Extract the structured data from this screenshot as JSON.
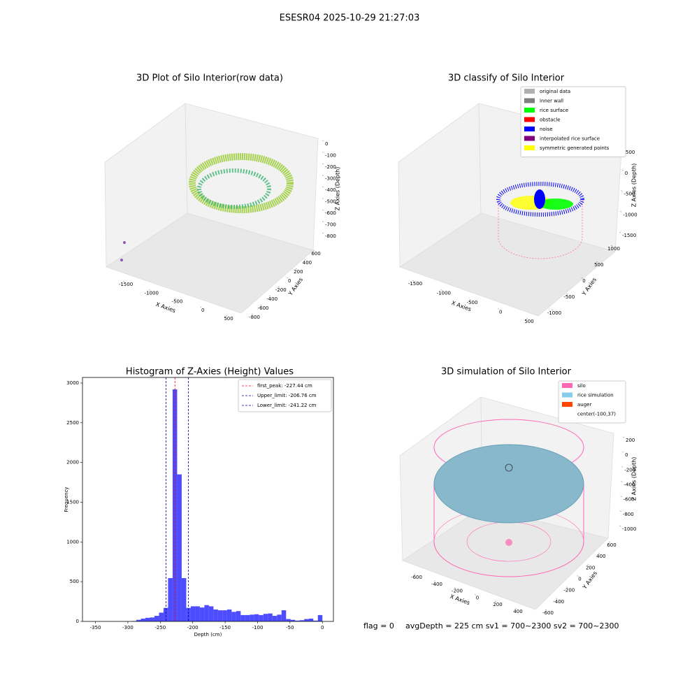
{
  "title": "ESESR04 2025-10-29 21:27:03",
  "footer": {
    "flag": "flag = 0",
    "stats": "avgDepth = 225 cm  sv1 = 700~2300  sv2 = 700~2300"
  },
  "chart_data": [
    {
      "type": "scatter3d",
      "title": "3D Plot of Silo Interior(row data)",
      "x_label": "X Axies",
      "y_label": "Y Axies",
      "z_label": "Z Axies (Depth)",
      "xticks": [
        -1500,
        -1000,
        -500,
        0,
        500
      ],
      "yticks": [
        600,
        400,
        200,
        0,
        -200,
        -400,
        -600,
        -800
      ],
      "zticks": [
        0,
        -100,
        -200,
        -300,
        -400,
        -500,
        -600,
        -700,
        -800
      ]
    },
    {
      "type": "scatter3d",
      "title": "3D classify of Silo Interior",
      "x_label": "X Axies",
      "y_label": "Y Axies",
      "z_label": "Z Axies (Depth)",
      "xticks": [
        -1500,
        -1000,
        -500,
        0,
        500
      ],
      "yticks": [
        1000,
        500,
        0,
        -500,
        -1000
      ],
      "zticks": [
        500,
        0,
        -500,
        -1000,
        -1500
      ],
      "series": [
        {
          "name": "original data",
          "color": "#b0b0b0"
        },
        {
          "name": "inner wall",
          "color": "#808080"
        },
        {
          "name": "rice surface",
          "color": "#00ff00"
        },
        {
          "name": "obstacle",
          "color": "#ff0000"
        },
        {
          "name": "noise",
          "color": "#0000ff"
        },
        {
          "name": "interpolated rice surface",
          "color": "#800080"
        },
        {
          "name": "symmetric generated points",
          "color": "#ffff00"
        }
      ]
    },
    {
      "type": "histogram",
      "title": "Histogram of Z-Axies (Height) Values",
      "x_label": "Depth (cm)",
      "y_label": "Frequency",
      "color": "#4d4dff",
      "bins": [
        -294,
        -287,
        -280,
        -273,
        -266,
        -259,
        -252,
        -245,
        -238,
        -231,
        -224,
        -217,
        -210,
        -203,
        -196,
        -189,
        -182,
        -175,
        -168,
        -161,
        -154,
        -147,
        -140,
        -133,
        -126,
        -119,
        -112,
        -105,
        -98,
        -91,
        -84,
        -77,
        -70,
        -63,
        -56,
        -49,
        -42,
        -35,
        -28,
        -21,
        -14,
        -7,
        0
      ],
      "values": [
        5,
        20,
        35,
        45,
        50,
        70,
        110,
        170,
        545,
        2920,
        1850,
        545,
        170,
        190,
        190,
        175,
        205,
        190,
        150,
        140,
        140,
        150,
        120,
        130,
        80,
        80,
        85,
        90,
        80,
        95,
        100,
        70,
        85,
        140,
        30,
        20,
        10,
        15,
        30,
        35,
        10,
        80
      ],
      "lines": [
        {
          "label": "first_peak: -227.44 cm",
          "value": -227.44,
          "color": "#ff0000"
        },
        {
          "label": "Upper_limit: -206.76 cm",
          "value": -206.76,
          "color": "#0000aa"
        },
        {
          "label": "Lower_limit: -241.22 cm",
          "value": -241.22,
          "color": "#0000aa"
        }
      ],
      "xlim": [
        -370,
        17
      ],
      "ylim": [
        0,
        3070
      ],
      "xticks": [
        -350,
        -300,
        -250,
        -200,
        -150,
        -100,
        -50,
        0
      ],
      "yticks": [
        0,
        500,
        1000,
        1500,
        2000,
        2500,
        3000
      ]
    },
    {
      "type": "scatter3d",
      "title": "3D simulation of Silo Interior",
      "x_label": "X Axies",
      "y_label": "Y Axies",
      "z_label": "Z Axies (Depth)",
      "xticks": [
        -600,
        -400,
        -200,
        0,
        200,
        400
      ],
      "yticks": [
        600,
        400,
        200,
        0,
        -200,
        -400,
        -600
      ],
      "zticks": [
        200,
        0,
        -200,
        -400,
        -600,
        -800,
        -1000
      ],
      "series": [
        {
          "name": "silo",
          "color": "#ff69b4"
        },
        {
          "name": "rice simulation",
          "color": "#87ceeb"
        },
        {
          "name": "auger",
          "color": "#ff4500"
        },
        {
          "name": "center(-100,37)",
          "color": "none"
        }
      ]
    }
  ]
}
